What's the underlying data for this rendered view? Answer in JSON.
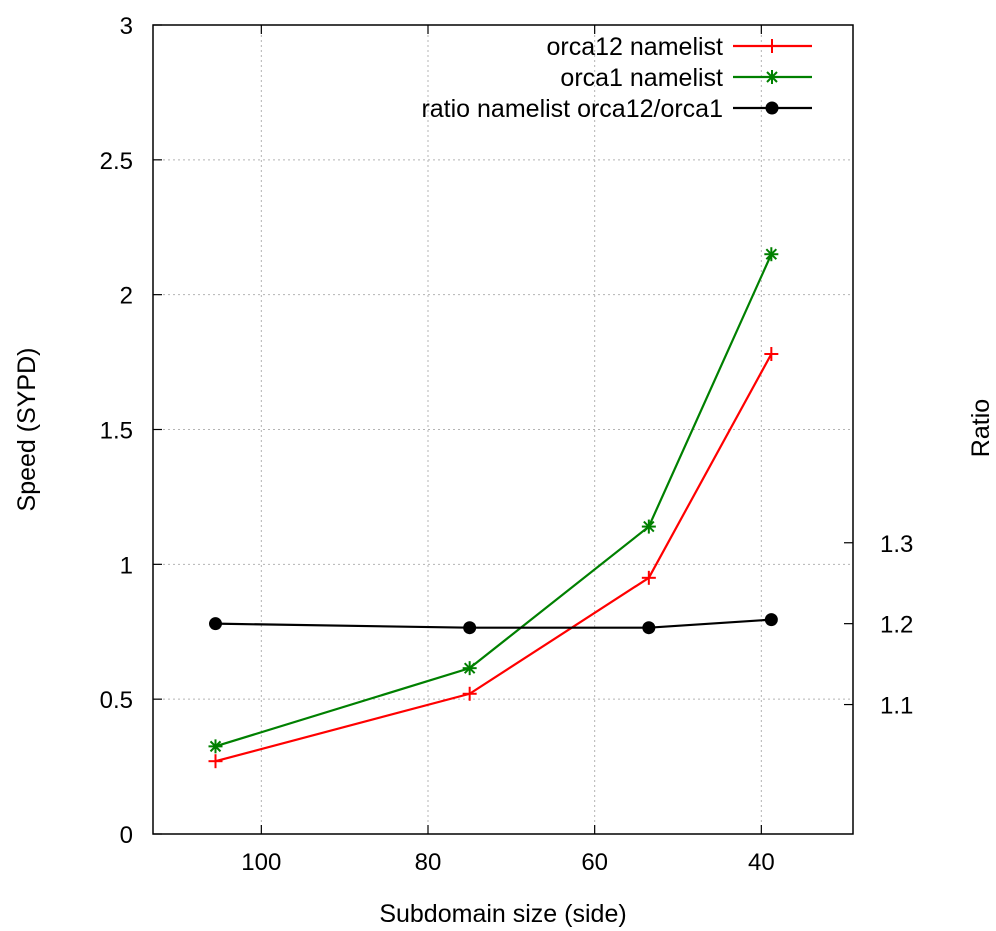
{
  "chart_data": {
    "type": "line",
    "title": "",
    "xlabel": "Subdomain size (side)",
    "ylabel": "Speed (SYPD)",
    "y2label": "Ratio",
    "xlim": [
      113,
      29
    ],
    "x_reversed": true,
    "ylim": [
      0,
      3
    ],
    "y2lim": [
      0.94,
      1.94
    ],
    "xticks": [
      100,
      80,
      60,
      40
    ],
    "yticks": [
      0,
      0.5,
      1,
      1.5,
      2,
      2.5,
      3
    ],
    "y2ticks": [
      1.1,
      1.2,
      1.3
    ],
    "grid": true,
    "legend_position": "top-right",
    "series": [
      {
        "name": "orca12 namelist",
        "axis": "left",
        "color": "#ff0000",
        "marker": "plus",
        "x": [
          105.5,
          75,
          53.5,
          38.8
        ],
        "y": [
          0.27,
          0.52,
          0.95,
          1.78
        ]
      },
      {
        "name": "orca1 namelist",
        "axis": "left",
        "color": "#008000",
        "marker": "star",
        "x": [
          105.5,
          75,
          53.5,
          38.8
        ],
        "y": [
          0.325,
          0.615,
          1.14,
          2.15
        ]
      },
      {
        "name": "ratio namelist orca12/orca1",
        "axis": "right",
        "color": "#000000",
        "marker": "circle",
        "x": [
          105.5,
          75,
          53.5,
          38.8
        ],
        "y": [
          1.2,
          1.195,
          1.195,
          1.205
        ]
      }
    ]
  }
}
